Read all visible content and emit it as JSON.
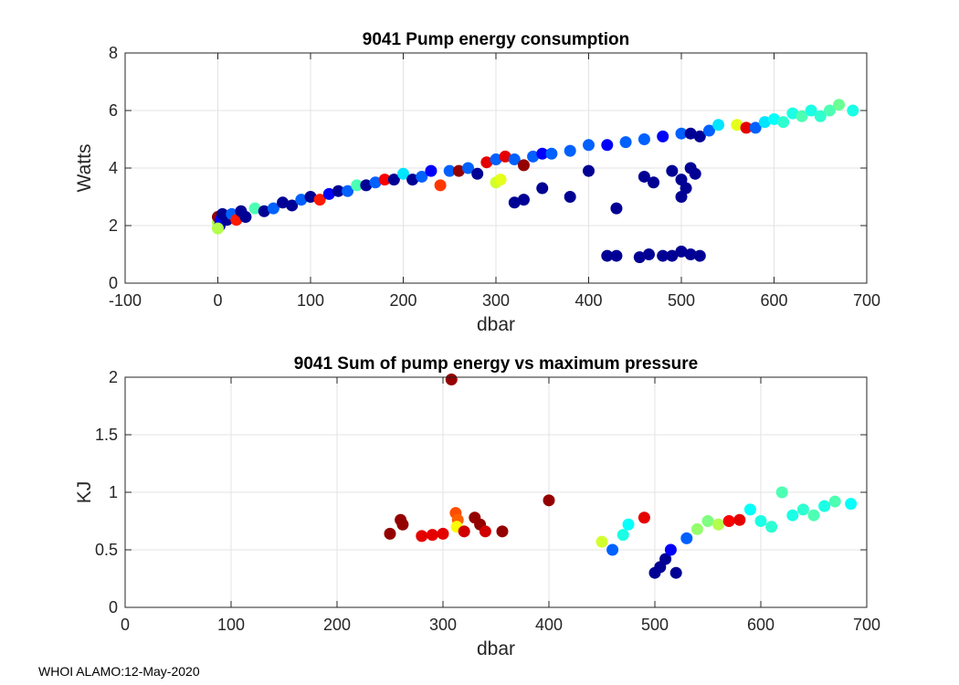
{
  "footer": "WHOI ALAMO:12-May-2020",
  "chart_data": [
    {
      "type": "scatter",
      "title": "9041 Pump energy consumption",
      "xlabel": "dbar",
      "ylabel": "Watts",
      "xlim": [
        -100,
        700
      ],
      "ylim": [
        0,
        8
      ],
      "xticks": [
        -100,
        0,
        100,
        200,
        300,
        400,
        500,
        600,
        700
      ],
      "yticks": [
        0,
        2,
        4,
        6,
        8
      ],
      "grid": true,
      "colormap": "jet",
      "points": [
        {
          "x": 0,
          "y": 2.1,
          "c": 0.55
        },
        {
          "x": 0,
          "y": 2.3,
          "c": 0.98
        },
        {
          "x": 2,
          "y": 2.0,
          "c": 0.05
        },
        {
          "x": 3,
          "y": 2.2,
          "c": 0.12
        },
        {
          "x": 5,
          "y": 2.4,
          "c": 0.02
        },
        {
          "x": 0,
          "y": 1.9,
          "c": 0.55
        },
        {
          "x": 10,
          "y": 2.2,
          "c": 0.02
        },
        {
          "x": 15,
          "y": 2.4,
          "c": 0.22
        },
        {
          "x": 20,
          "y": 2.2,
          "c": 0.85
        },
        {
          "x": 25,
          "y": 2.5,
          "c": 0.02
        },
        {
          "x": 30,
          "y": 2.3,
          "c": 0.02
        },
        {
          "x": 40,
          "y": 2.6,
          "c": 0.45
        },
        {
          "x": 50,
          "y": 2.5,
          "c": 0.02
        },
        {
          "x": 60,
          "y": 2.6,
          "c": 0.22
        },
        {
          "x": 70,
          "y": 2.8,
          "c": 0.02
        },
        {
          "x": 80,
          "y": 2.7,
          "c": 0.02
        },
        {
          "x": 90,
          "y": 2.9,
          "c": 0.22
        },
        {
          "x": 100,
          "y": 3.0,
          "c": 0.02
        },
        {
          "x": 110,
          "y": 2.9,
          "c": 0.85
        },
        {
          "x": 120,
          "y": 3.1,
          "c": 0.12
        },
        {
          "x": 130,
          "y": 3.2,
          "c": 0.02
        },
        {
          "x": 140,
          "y": 3.2,
          "c": 0.22
        },
        {
          "x": 150,
          "y": 3.4,
          "c": 0.45
        },
        {
          "x": 160,
          "y": 3.4,
          "c": 0.02
        },
        {
          "x": 170,
          "y": 3.5,
          "c": 0.22
        },
        {
          "x": 180,
          "y": 3.6,
          "c": 0.88
        },
        {
          "x": 190,
          "y": 3.6,
          "c": 0.02
        },
        {
          "x": 200,
          "y": 3.8,
          "c": 0.35
        },
        {
          "x": 210,
          "y": 3.6,
          "c": 0.02
        },
        {
          "x": 220,
          "y": 3.7,
          "c": 0.22
        },
        {
          "x": 230,
          "y": 3.9,
          "c": 0.12
        },
        {
          "x": 240,
          "y": 3.4,
          "c": 0.82
        },
        {
          "x": 250,
          "y": 3.9,
          "c": 0.22
        },
        {
          "x": 260,
          "y": 3.9,
          "c": 0.98
        },
        {
          "x": 270,
          "y": 4.0,
          "c": 0.22
        },
        {
          "x": 280,
          "y": 3.8,
          "c": 0.02
        },
        {
          "x": 290,
          "y": 4.2,
          "c": 0.9
        },
        {
          "x": 300,
          "y": 4.3,
          "c": 0.22
        },
        {
          "x": 300,
          "y": 3.5,
          "c": 0.58
        },
        {
          "x": 305,
          "y": 3.6,
          "c": 0.6
        },
        {
          "x": 310,
          "y": 4.4,
          "c": 0.9
        },
        {
          "x": 320,
          "y": 4.3,
          "c": 0.22
        },
        {
          "x": 330,
          "y": 4.1,
          "c": 0.98
        },
        {
          "x": 340,
          "y": 4.4,
          "c": 0.22
        },
        {
          "x": 350,
          "y": 4.5,
          "c": 0.12
        },
        {
          "x": 360,
          "y": 4.5,
          "c": 0.22
        },
        {
          "x": 380,
          "y": 4.6,
          "c": 0.22
        },
        {
          "x": 400,
          "y": 4.8,
          "c": 0.22
        },
        {
          "x": 420,
          "y": 4.8,
          "c": 0.12
        },
        {
          "x": 440,
          "y": 4.9,
          "c": 0.22
        },
        {
          "x": 460,
          "y": 5.0,
          "c": 0.22
        },
        {
          "x": 480,
          "y": 5.1,
          "c": 0.12
        },
        {
          "x": 500,
          "y": 5.2,
          "c": 0.22
        },
        {
          "x": 510,
          "y": 5.2,
          "c": 0.02
        },
        {
          "x": 520,
          "y": 5.1,
          "c": 0.02
        },
        {
          "x": 530,
          "y": 5.3,
          "c": 0.22
        },
        {
          "x": 540,
          "y": 5.5,
          "c": 0.35
        },
        {
          "x": 560,
          "y": 5.5,
          "c": 0.6
        },
        {
          "x": 570,
          "y": 5.4,
          "c": 0.9
        },
        {
          "x": 580,
          "y": 5.4,
          "c": 0.22
        },
        {
          "x": 590,
          "y": 5.6,
          "c": 0.35
        },
        {
          "x": 600,
          "y": 5.7,
          "c": 0.38
        },
        {
          "x": 610,
          "y": 5.6,
          "c": 0.42
        },
        {
          "x": 620,
          "y": 5.9,
          "c": 0.4
        },
        {
          "x": 630,
          "y": 5.8,
          "c": 0.45
        },
        {
          "x": 640,
          "y": 6.0,
          "c": 0.4
        },
        {
          "x": 650,
          "y": 5.8,
          "c": 0.42
        },
        {
          "x": 660,
          "y": 6.0,
          "c": 0.45
        },
        {
          "x": 670,
          "y": 6.2,
          "c": 0.48
        },
        {
          "x": 685,
          "y": 6.0,
          "c": 0.4
        },
        {
          "x": 320,
          "y": 2.8,
          "c": 0.02
        },
        {
          "x": 330,
          "y": 2.9,
          "c": 0.02
        },
        {
          "x": 350,
          "y": 3.3,
          "c": 0.02
        },
        {
          "x": 380,
          "y": 3.0,
          "c": 0.02
        },
        {
          "x": 400,
          "y": 3.9,
          "c": 0.02
        },
        {
          "x": 430,
          "y": 2.6,
          "c": 0.02
        },
        {
          "x": 460,
          "y": 3.7,
          "c": 0.02
        },
        {
          "x": 470,
          "y": 3.5,
          "c": 0.02
        },
        {
          "x": 490,
          "y": 3.9,
          "c": 0.02
        },
        {
          "x": 500,
          "y": 3.0,
          "c": 0.02
        },
        {
          "x": 500,
          "y": 3.6,
          "c": 0.02
        },
        {
          "x": 505,
          "y": 3.3,
          "c": 0.02
        },
        {
          "x": 510,
          "y": 4.0,
          "c": 0.02
        },
        {
          "x": 515,
          "y": 3.8,
          "c": 0.02
        },
        {
          "x": 420,
          "y": 0.95,
          "c": 0.02
        },
        {
          "x": 430,
          "y": 0.95,
          "c": 0.02
        },
        {
          "x": 455,
          "y": 0.9,
          "c": 0.02
        },
        {
          "x": 465,
          "y": 1.0,
          "c": 0.02
        },
        {
          "x": 480,
          "y": 0.95,
          "c": 0.02
        },
        {
          "x": 490,
          "y": 0.95,
          "c": 0.02
        },
        {
          "x": 500,
          "y": 1.1,
          "c": 0.02
        },
        {
          "x": 510,
          "y": 1.0,
          "c": 0.02
        },
        {
          "x": 520,
          "y": 0.95,
          "c": 0.02
        }
      ]
    },
    {
      "type": "scatter",
      "title": "9041 Sum of pump energy vs maximum pressure",
      "xlabel": "dbar",
      "ylabel": "KJ",
      "xlim": [
        0,
        700
      ],
      "ylim": [
        0,
        2
      ],
      "xticks": [
        0,
        100,
        200,
        300,
        400,
        500,
        600,
        700
      ],
      "yticks": [
        0,
        0.5,
        1,
        1.5,
        2
      ],
      "ytick_labels": [
        "0",
        "0.5",
        "1",
        "1.5",
        "2"
      ],
      "grid": true,
      "colormap": "jet",
      "points": [
        {
          "x": 308,
          "y": 1.98,
          "c": 0.98
        },
        {
          "x": 400,
          "y": 0.93,
          "c": 0.98
        },
        {
          "x": 250,
          "y": 0.64,
          "c": 0.98
        },
        {
          "x": 260,
          "y": 0.76,
          "c": 0.98
        },
        {
          "x": 262,
          "y": 0.72,
          "c": 0.98
        },
        {
          "x": 280,
          "y": 0.62,
          "c": 0.9
        },
        {
          "x": 290,
          "y": 0.63,
          "c": 0.9
        },
        {
          "x": 300,
          "y": 0.64,
          "c": 0.9
        },
        {
          "x": 312,
          "y": 0.82,
          "c": 0.8
        },
        {
          "x": 314,
          "y": 0.76,
          "c": 0.78
        },
        {
          "x": 313,
          "y": 0.7,
          "c": 0.62
        },
        {
          "x": 320,
          "y": 0.66,
          "c": 0.92
        },
        {
          "x": 330,
          "y": 0.78,
          "c": 0.98
        },
        {
          "x": 335,
          "y": 0.72,
          "c": 0.98
        },
        {
          "x": 340,
          "y": 0.66,
          "c": 0.92
        },
        {
          "x": 356,
          "y": 0.66,
          "c": 0.98
        },
        {
          "x": 450,
          "y": 0.57,
          "c": 0.58
        },
        {
          "x": 460,
          "y": 0.5,
          "c": 0.22
        },
        {
          "x": 470,
          "y": 0.63,
          "c": 0.4
        },
        {
          "x": 475,
          "y": 0.72,
          "c": 0.38
        },
        {
          "x": 490,
          "y": 0.78,
          "c": 0.9
        },
        {
          "x": 500,
          "y": 0.3,
          "c": 0.02
        },
        {
          "x": 505,
          "y": 0.35,
          "c": 0.02
        },
        {
          "x": 510,
          "y": 0.42,
          "c": 0.02
        },
        {
          "x": 515,
          "y": 0.5,
          "c": 0.12
        },
        {
          "x": 520,
          "y": 0.3,
          "c": 0.02
        },
        {
          "x": 530,
          "y": 0.6,
          "c": 0.22
        },
        {
          "x": 540,
          "y": 0.68,
          "c": 0.52
        },
        {
          "x": 550,
          "y": 0.75,
          "c": 0.5
        },
        {
          "x": 560,
          "y": 0.72,
          "c": 0.55
        },
        {
          "x": 570,
          "y": 0.75,
          "c": 0.88
        },
        {
          "x": 580,
          "y": 0.76,
          "c": 0.9
        },
        {
          "x": 590,
          "y": 0.85,
          "c": 0.38
        },
        {
          "x": 600,
          "y": 0.75,
          "c": 0.4
        },
        {
          "x": 610,
          "y": 0.7,
          "c": 0.42
        },
        {
          "x": 620,
          "y": 1.0,
          "c": 0.45
        },
        {
          "x": 630,
          "y": 0.8,
          "c": 0.4
        },
        {
          "x": 640,
          "y": 0.85,
          "c": 0.42
        },
        {
          "x": 650,
          "y": 0.8,
          "c": 0.45
        },
        {
          "x": 660,
          "y": 0.88,
          "c": 0.4
        },
        {
          "x": 670,
          "y": 0.92,
          "c": 0.45
        },
        {
          "x": 685,
          "y": 0.9,
          "c": 0.38
        }
      ]
    }
  ]
}
